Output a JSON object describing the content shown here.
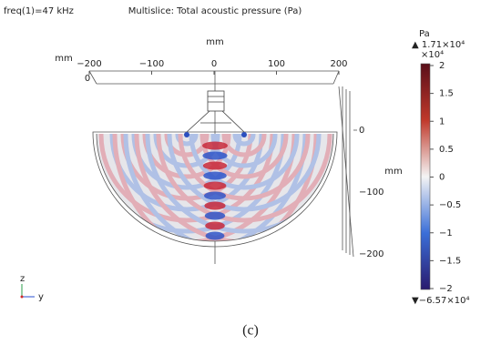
{
  "header": {
    "freq": "freq(1)=47 kHz",
    "title": "Multislice: Total acoustic pressure (Pa)"
  },
  "top_axis": {
    "unit": "mm",
    "ticks": [
      "−200",
      "−100",
      "0",
      "100",
      "200"
    ]
  },
  "left_axis": {
    "unit": "mm",
    "tick": "0"
  },
  "right_axis": {
    "unit": "mm",
    "ticks": [
      "0",
      "−100",
      "−200"
    ]
  },
  "colorbar": {
    "unit": "Pa",
    "max": "▲ 1.71×10⁴",
    "scale": "×10⁴",
    "ticks": [
      "2",
      "1.5",
      "1",
      "0.5",
      "0",
      "−0.5",
      "−1",
      "−1.5",
      "−2"
    ],
    "min": "▼−6.57×10⁴"
  },
  "triad": {
    "z": "z",
    "y": "y"
  },
  "caption": "(c)"
}
